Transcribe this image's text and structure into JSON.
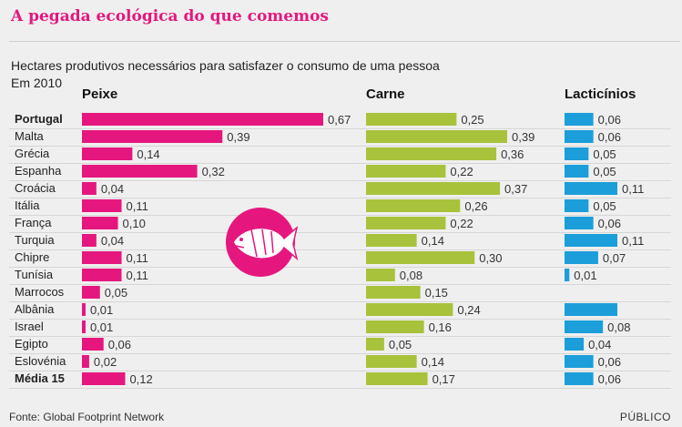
{
  "title": "A pegada ecológica do que comemos",
  "subtitle": "Hectares produtivos necessários para satisfazer o consumo de uma pessoa",
  "year_note": "Em 2010",
  "source": "Fonte: Global Footprint Network",
  "credit": "PÚBLICO",
  "colors": {
    "peixe": "#e5177e",
    "carne": "#a8c23b",
    "lacticinios": "#1b9ed9"
  },
  "icon": "fish-icon",
  "chart_data": [
    {
      "type": "bar",
      "title": "Peixe",
      "categories": [
        "Portugal",
        "Malta",
        "Grécia",
        "Espanha",
        "Croácia",
        "Itália",
        "França",
        "Turquia",
        "Chipre",
        "Tunísia",
        "Marrocos",
        "Albânia",
        "Israel",
        "Egipto",
        "Eslovénia",
        "Média 15"
      ],
      "value_labels": [
        "0,67",
        "0,39",
        "0,14",
        "0,32",
        "0,04",
        "0,11",
        "0,10",
        "0,04",
        "0,11",
        "0,11",
        "0,05",
        "0,01",
        "0,01",
        "0,06",
        "0,02",
        "0,12"
      ],
      "values": [
        0.67,
        0.39,
        0.14,
        0.32,
        0.04,
        0.11,
        0.1,
        0.04,
        0.11,
        0.11,
        0.05,
        0.01,
        0.01,
        0.06,
        0.02,
        0.12
      ]
    },
    {
      "type": "bar",
      "title": "Carne",
      "categories": [
        "Portugal",
        "Malta",
        "Grécia",
        "Espanha",
        "Croácia",
        "Itália",
        "França",
        "Turquia",
        "Chipre",
        "Tunísia",
        "Marrocos",
        "Albânia",
        "Israel",
        "Egipto",
        "Eslovénia",
        "Média 15"
      ],
      "value_labels": [
        "0,25",
        "0,39",
        "0,36",
        "0,22",
        "0,37",
        "0,26",
        "0,22",
        "0,14",
        "0,30",
        "0,08",
        "0,15",
        "0,24",
        "0,16",
        "0,05",
        "0,14",
        "0,17"
      ],
      "values": [
        0.25,
        0.39,
        0.36,
        0.22,
        0.37,
        0.26,
        0.22,
        0.14,
        0.3,
        0.08,
        0.15,
        0.24,
        0.16,
        0.05,
        0.14,
        0.17
      ]
    },
    {
      "type": "bar",
      "title": "Lacticínios",
      "categories": [
        "Portugal",
        "Malta",
        "Grécia",
        "Espanha",
        "Croácia",
        "Itália",
        "França",
        "Turquia",
        "Chipre",
        "Tunísia",
        "Marrocos",
        "Albânia",
        "Israel",
        "Egipto",
        "Eslovénia",
        "Média 15"
      ],
      "value_labels": [
        "0,06",
        "0,06",
        "0,05",
        "0,05",
        "0,11",
        "0,05",
        "0,06",
        "0,11",
        "0,07",
        "0,01",
        "",
        "",
        "0,08",
        "0,04",
        "0,06",
        "0,06"
      ],
      "values": [
        0.06,
        0.06,
        0.05,
        0.05,
        0.11,
        0.05,
        0.06,
        0.11,
        0.07,
        0.01,
        null,
        0.11,
        0.08,
        0.04,
        0.06,
        0.06
      ]
    }
  ]
}
